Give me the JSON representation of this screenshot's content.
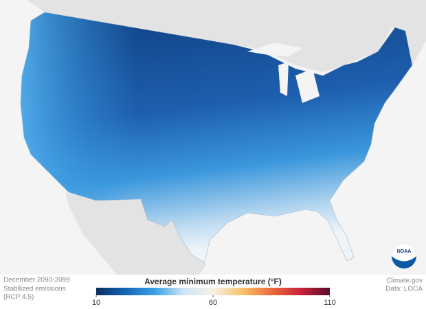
{
  "caption": {
    "period": "December 2090-2099",
    "scenario": "Stabilized emissions",
    "scenario_detail": "(RCP 4.5)"
  },
  "credits": {
    "site": "Climate.gov",
    "source": "Data: LOCA"
  },
  "logo": "NOAA",
  "colorbar": {
    "title": "Average minimum temperature (°F)",
    "range": [
      10,
      110
    ],
    "ticks": [
      10,
      60,
      110
    ],
    "colors": [
      "#0b2d5e",
      "#1565b8",
      "#3aa0e6",
      "#cfe6f5",
      "#f6f1e6",
      "#f7c46b",
      "#ec6a3c",
      "#c8233a",
      "#5a0d2e"
    ]
  }
}
